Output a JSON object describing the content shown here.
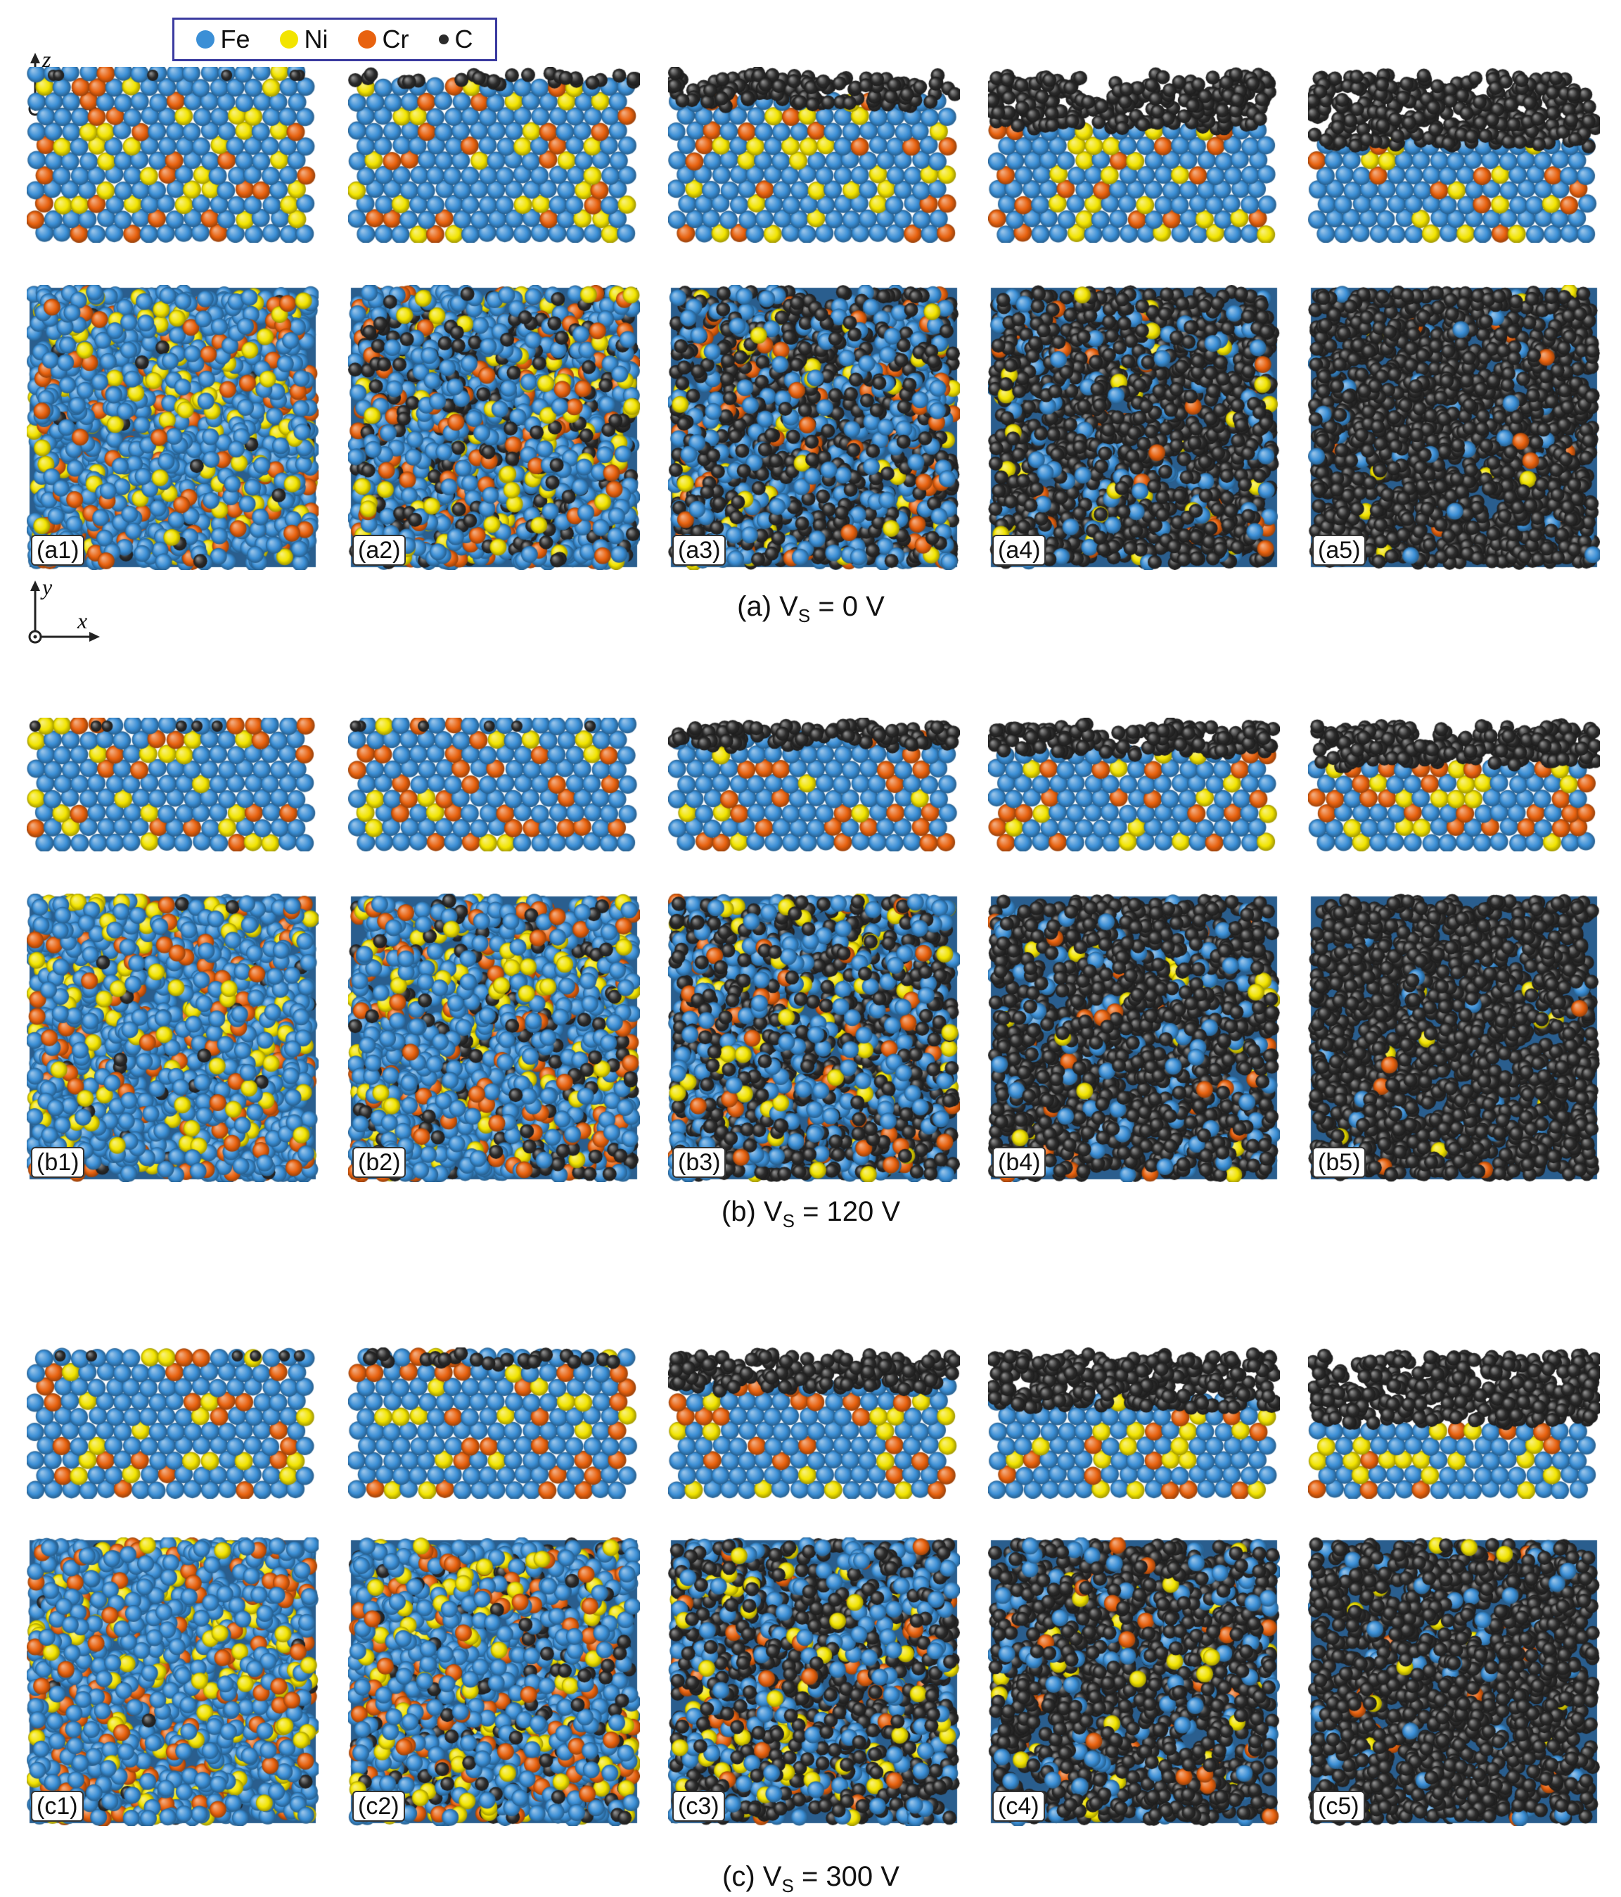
{
  "legend": {
    "items": [
      {
        "label": "Fe",
        "color": "#3b8fd6"
      },
      {
        "label": "Ni",
        "color": "#f2e400"
      },
      {
        "label": "Cr",
        "color": "#e8620f"
      },
      {
        "label": "C",
        "color": "#2b2b2b"
      }
    ]
  },
  "axes": {
    "side": {
      "up": "z",
      "right": "x"
    },
    "top": {
      "up": "y",
      "right": "x"
    }
  },
  "groups": [
    {
      "caption_prefix": "(a) V",
      "caption_sub": "S",
      "caption_suffix": " = 0 V",
      "labels": [
        "(a1)",
        "(a2)",
        "(a3)",
        "(a4)",
        "(a5)"
      ],
      "carbon_fraction": [
        0.02,
        0.25,
        0.55,
        0.82,
        0.96
      ],
      "film_height": [
        0.0,
        0.03,
        0.15,
        0.28,
        0.38
      ]
    },
    {
      "caption_prefix": "(b) V",
      "caption_sub": "S",
      "caption_suffix": " = 120 V",
      "labels": [
        "(b1)",
        "(b2)",
        "(b3)",
        "(b4)",
        "(b5)"
      ],
      "carbon_fraction": [
        0.03,
        0.18,
        0.55,
        0.85,
        0.97
      ],
      "film_height": [
        0.0,
        0.0,
        0.12,
        0.18,
        0.26
      ]
    },
    {
      "caption_prefix": "(c) V",
      "caption_sub": "S",
      "caption_suffix": " = 300 V",
      "labels": [
        "(c1)",
        "(c2)",
        "(c3)",
        "(c4)",
        "(c5)"
      ],
      "carbon_fraction": [
        0.02,
        0.15,
        0.55,
        0.8,
        0.93
      ],
      "film_height": [
        0.0,
        0.03,
        0.2,
        0.32,
        0.42
      ]
    }
  ]
}
